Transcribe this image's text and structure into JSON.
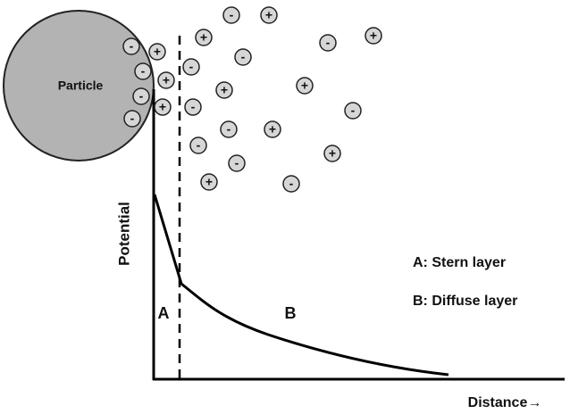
{
  "particle": {
    "label": "Particle"
  },
  "ions": [
    "-",
    "+",
    "-",
    "+",
    "-",
    "+",
    "-",
    "-",
    "+",
    "+",
    "-",
    "+",
    "-",
    "-",
    "+",
    "+",
    "-",
    "-",
    "-",
    "+",
    "-",
    "+",
    "-",
    "+",
    "-"
  ],
  "axis": {
    "y_label": "Potential",
    "x_label": "Distance→"
  },
  "regions": {
    "a": "A",
    "b": "B"
  },
  "legend": [
    "A: Stern layer",
    "B: Diffuse layer"
  ]
}
